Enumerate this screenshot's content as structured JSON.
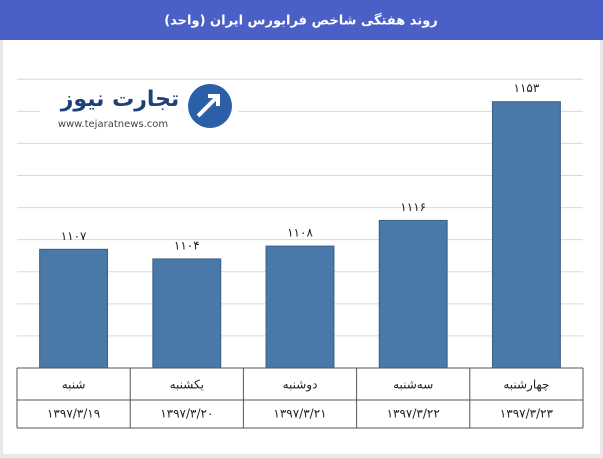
{
  "chart_data": {
    "type": "bar",
    "title": "روند هفتگی شاخص فرابورس ایران (واحد)",
    "categories": [
      "شنبه",
      "یکشنبه",
      "دوشنبه",
      "سه‌شنبه",
      "چهارشنبه"
    ],
    "category_dates": [
      "۱۳۹۷/۳/۱۹",
      "۱۳۹۷/۳/۲۰",
      "۱۳۹۷/۳/۲۱",
      "۱۳۹۷/۳/۲۲",
      "۱۳۹۷/۳/۲۳"
    ],
    "values": [
      1107,
      1104,
      1108,
      1116,
      1153
    ],
    "value_labels": [
      "۱۱۰۷",
      "۱۱۰۴",
      "۱۱۰۸",
      "۱۱۱۶",
      "۱۱۵۳"
    ],
    "color": "#4a78a8",
    "ylim": [
      1070,
      1166
    ],
    "yticks": [
      1080,
      1090,
      1100,
      1110,
      1120,
      1130,
      1140,
      1150,
      1160
    ],
    "grid": true,
    "logo": {
      "name": "تجارت نیوز",
      "url": "www.tejaratnews.com"
    }
  }
}
